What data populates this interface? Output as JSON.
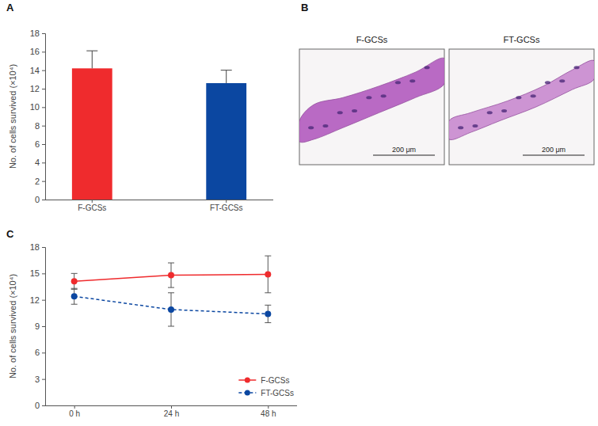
{
  "chart_data": [
    {
      "panel": "A",
      "type": "bar",
      "categories": [
        "F-GCSs",
        "FT-GCSs"
      ],
      "values": [
        14.2,
        12.6
      ],
      "errors": [
        1.9,
        1.4
      ],
      "colors": [
        "#ef2b2d",
        "#0b47a1"
      ],
      "y_label": "No. of cells survived (×10⁴)",
      "ylim": [
        0,
        18
      ],
      "yticks": [
        0,
        2,
        4,
        6,
        8,
        10,
        12,
        14,
        16,
        18
      ]
    },
    {
      "panel": "B",
      "type": "image",
      "images": [
        {
          "title": "F-GCSs",
          "scale_bar": "200 μm"
        },
        {
          "title": "FT-GCSs",
          "scale_bar": "200 μm"
        }
      ]
    },
    {
      "panel": "C",
      "type": "line",
      "categories": [
        "0 h",
        "24 h",
        "48 h"
      ],
      "series": [
        {
          "name": "F-GCSs",
          "color": "#ef2b2d",
          "values": [
            14.1,
            14.8,
            14.9
          ],
          "errors": [
            0.9,
            1.4,
            2.1
          ],
          "marker": "circle",
          "line_style": "solid"
        },
        {
          "name": "FT-GCSs",
          "color": "#0b47a1",
          "values": [
            12.4,
            10.9,
            10.4
          ],
          "errors": [
            0.9,
            1.9,
            1.0
          ],
          "marker": "circle",
          "line_style": "dashed"
        }
      ],
      "y_label": "No. of cells survived (×10⁴)",
      "ylim": [
        0,
        18
      ],
      "yticks": [
        0,
        3,
        6,
        9,
        12,
        15,
        18
      ],
      "legend": "lower right"
    }
  ]
}
